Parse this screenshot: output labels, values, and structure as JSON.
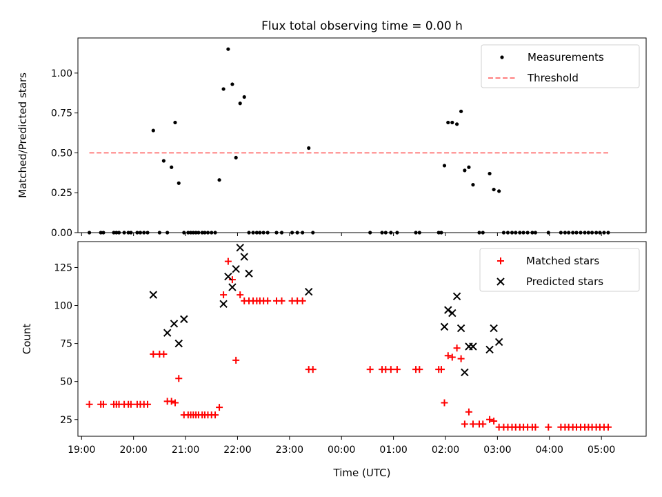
{
  "title": "Flux total observing time = 0.00 h",
  "chart_data": [
    {
      "type": "scatter",
      "ylabel": "Matched/Predicted stars",
      "ylim": [
        0,
        1.22
      ],
      "yticks": [
        0.0,
        0.25,
        0.5,
        0.75,
        1.0
      ],
      "ytick_labels": [
        "0.00",
        "0.25",
        "0.50",
        "0.75",
        "1.00"
      ],
      "x_unit": "hours",
      "xlim": [
        18.93,
        29.86
      ],
      "legend_position": "top-right",
      "series": [
        {
          "name": "Measurements",
          "kind": "scatter",
          "color": "#000000",
          "x": [
            19.15,
            19.37,
            19.42,
            19.62,
            19.67,
            19.72,
            19.82,
            19.9,
            19.95,
            20.07,
            20.13,
            20.2,
            20.27,
            20.38,
            20.5,
            20.58,
            20.65,
            20.73,
            20.8,
            20.87,
            20.97,
            21.05,
            21.1,
            21.15,
            21.2,
            21.25,
            21.32,
            21.37,
            21.43,
            21.5,
            21.57,
            21.65,
            21.73,
            21.82,
            21.9,
            21.97,
            22.05,
            22.13,
            22.22,
            22.3,
            22.37,
            22.43,
            22.5,
            22.58,
            22.75,
            22.85,
            23.05,
            23.15,
            23.25,
            23.37,
            23.45,
            24.55,
            24.78,
            24.85,
            24.95,
            25.07,
            25.43,
            25.5,
            25.87,
            25.92,
            25.98,
            26.05,
            26.13,
            26.22,
            26.3,
            26.37,
            26.45,
            26.53,
            26.65,
            26.72,
            26.85,
            26.93,
            27.03,
            27.12,
            27.2,
            27.28,
            27.35,
            27.43,
            27.5,
            27.58,
            27.67,
            27.73,
            27.98,
            28.22,
            28.3,
            28.37,
            28.45,
            28.52,
            28.6,
            28.68,
            28.75,
            28.82,
            28.9,
            28.97,
            29.05,
            29.13
          ],
          "y": [
            0,
            0,
            0,
            0,
            0,
            0,
            0,
            0,
            0,
            0,
            0,
            0,
            0,
            0.64,
            0,
            0.45,
            0,
            0.41,
            0.69,
            0.31,
            0,
            0,
            0,
            0,
            0,
            0,
            0,
            0,
            0,
            0,
            0,
            0.33,
            0.9,
            1.15,
            0.93,
            0.47,
            0.81,
            0.85,
            0,
            0,
            0,
            0,
            0,
            0,
            0,
            0,
            0,
            0,
            0,
            0.53,
            0,
            0,
            0,
            0,
            0,
            0,
            0,
            0,
            0,
            0,
            0.42,
            0.69,
            0.69,
            0.68,
            0.76,
            0.39,
            0.41,
            0.3,
            0,
            0,
            0.37,
            0.27,
            0.26,
            0,
            0,
            0,
            0,
            0,
            0,
            0,
            0,
            0,
            0,
            0,
            0,
            0,
            0,
            0,
            0,
            0,
            0,
            0,
            0,
            0,
            0,
            0
          ]
        },
        {
          "name": "Threshold",
          "kind": "line",
          "style": "dashed",
          "color": "#ff7f7f",
          "x": [
            19.15,
            29.13
          ],
          "y": [
            0.5,
            0.5
          ]
        }
      ]
    },
    {
      "type": "scatter",
      "xlabel": "Time (UTC)",
      "ylabel": "Count",
      "ylim": [
        14,
        142
      ],
      "yticks": [
        25,
        50,
        75,
        100,
        125
      ],
      "ytick_labels": [
        "25",
        "50",
        "75",
        "100",
        "125"
      ],
      "x_unit": "hours",
      "xlim": [
        18.93,
        29.86
      ],
      "xticks": [
        19,
        20,
        21,
        22,
        23,
        24,
        25,
        26,
        27,
        28,
        29
      ],
      "xtick_labels": [
        "19:00",
        "20:00",
        "21:00",
        "22:00",
        "23:00",
        "00:00",
        "01:00",
        "02:00",
        "03:00",
        "04:00",
        "05:00"
      ],
      "legend_position": "top-right",
      "series": [
        {
          "name": "Matched stars",
          "marker": "+",
          "color": "#ff0000",
          "x": [
            19.15,
            19.37,
            19.42,
            19.62,
            19.67,
            19.72,
            19.82,
            19.9,
            19.95,
            20.07,
            20.13,
            20.2,
            20.27,
            20.38,
            20.5,
            20.58,
            20.65,
            20.73,
            20.8,
            20.87,
            20.97,
            21.05,
            21.1,
            21.15,
            21.2,
            21.25,
            21.32,
            21.37,
            21.43,
            21.5,
            21.57,
            21.65,
            21.73,
            21.82,
            21.9,
            21.97,
            22.05,
            22.13,
            22.22,
            22.3,
            22.37,
            22.43,
            22.5,
            22.58,
            22.75,
            22.85,
            23.05,
            23.15,
            23.25,
            23.37,
            23.45,
            24.55,
            24.78,
            24.85,
            24.95,
            25.07,
            25.43,
            25.5,
            25.87,
            25.92,
            25.98,
            26.05,
            26.13,
            26.22,
            26.3,
            26.37,
            26.45,
            26.53,
            26.65,
            26.72,
            26.85,
            26.93,
            27.03,
            27.12,
            27.2,
            27.28,
            27.35,
            27.43,
            27.5,
            27.58,
            27.67,
            27.73,
            27.98,
            28.22,
            28.3,
            28.37,
            28.45,
            28.52,
            28.6,
            28.68,
            28.75,
            28.82,
            28.9,
            28.97,
            29.05,
            29.13
          ],
          "y": [
            35,
            35,
            35,
            35,
            35,
            35,
            35,
            35,
            35,
            35,
            35,
            35,
            35,
            68,
            68,
            68,
            37,
            37,
            36,
            52,
            28,
            28,
            28,
            28,
            28,
            28,
            28,
            28,
            28,
            28,
            28,
            33,
            107,
            129,
            117,
            64,
            107,
            103,
            103,
            103,
            103,
            103,
            103,
            103,
            103,
            103,
            103,
            103,
            103,
            58,
            58,
            58,
            58,
            58,
            58,
            58,
            58,
            58,
            58,
            58,
            36,
            67,
            66,
            72,
            65,
            22,
            30,
            22,
            22,
            22,
            25,
            24,
            20,
            20,
            20,
            20,
            20,
            20,
            20,
            20,
            20,
            20,
            20,
            20,
            20,
            20,
            20,
            20,
            20,
            20,
            20,
            20,
            20,
            20,
            20,
            20
          ]
        },
        {
          "name": "Predicted stars",
          "marker": "x",
          "color": "#000000",
          "x": [
            20.38,
            20.65,
            20.78,
            20.87,
            20.97,
            21.73,
            21.82,
            21.9,
            21.97,
            22.05,
            22.13,
            22.22,
            23.37,
            25.98,
            26.05,
            26.13,
            26.22,
            26.3,
            26.37,
            26.45,
            26.53,
            26.85,
            26.93,
            27.03
          ],
          "y": [
            107,
            82,
            88,
            75,
            91,
            101,
            119,
            112,
            124,
            138,
            132,
            121,
            109,
            86,
            97,
            95,
            106,
            85,
            56,
            73,
            73,
            71,
            85,
            76
          ]
        }
      ]
    }
  ]
}
